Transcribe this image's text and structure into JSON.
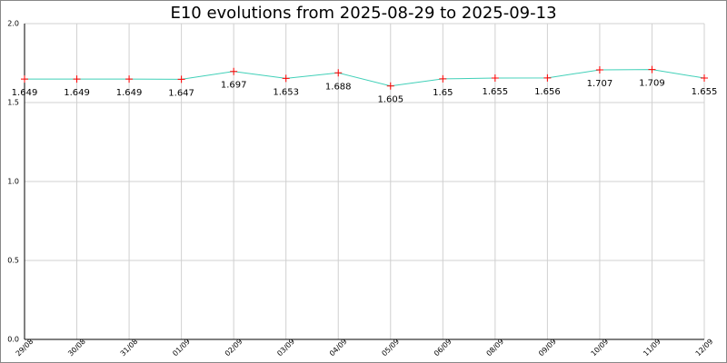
{
  "chart_data": {
    "type": "line",
    "title": "E10 evolutions from 2025-08-29 to 2025-09-13",
    "categories": [
      "29/08",
      "30/08",
      "31/08",
      "01/09",
      "02/09",
      "03/09",
      "04/09",
      "05/09",
      "06/09",
      "08/09",
      "09/09",
      "10/09",
      "11/09",
      "12/09"
    ],
    "values": [
      1.649,
      1.649,
      1.649,
      1.647,
      1.697,
      1.653,
      1.688,
      1.605,
      1.65,
      1.655,
      1.656,
      1.707,
      1.709,
      1.655
    ],
    "color": "#40d0b8",
    "marker_color": "#ff0000",
    "ylim": [
      0,
      2
    ],
    "yticks": [
      {
        "value": 0,
        "label": "0.0"
      },
      0.5,
      {
        "value": 1,
        "label": "1.0"
      },
      1.5,
      {
        "value": 2,
        "label": "2.0"
      }
    ],
    "grid": true
  }
}
